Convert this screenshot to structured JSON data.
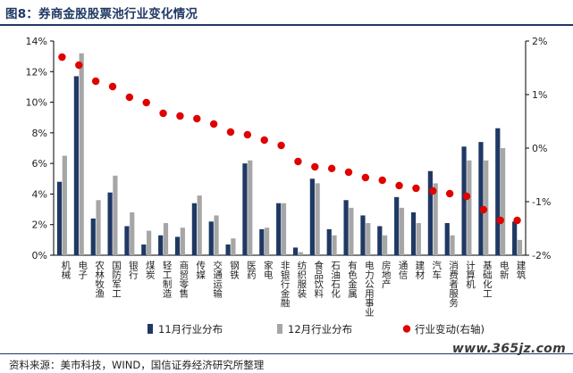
{
  "figure": {
    "title": "图8：券商金股股票池行业变化情况",
    "source": "资料来源：美市科技，WIND，国信证券经济研究所整理",
    "watermark": "www.365jz.com"
  },
  "chart_data": {
    "type": "bar",
    "title": "",
    "xlabel": "",
    "ylabel": "",
    "y2label": "",
    "categories": [
      "机械",
      "电子",
      "农林牧渔",
      "国防军工",
      "银行",
      "煤炭",
      "轻工制造",
      "商贸零售",
      "传媒",
      "交通运输",
      "钢铁",
      "医药",
      "家电",
      "非银行金融",
      "纺织服装",
      "食品饮料",
      "石油石化",
      "有色金属",
      "电力公用事业",
      "房地产",
      "通信",
      "建材",
      "汽车",
      "消费者服务",
      "计算机",
      "基础化工",
      "电新",
      "建筑"
    ],
    "ylim": [
      0,
      14
    ],
    "yticks": [
      0,
      2,
      4,
      6,
      8,
      10,
      12,
      14
    ],
    "ytick_labels": [
      "0%",
      "2%",
      "4%",
      "6%",
      "8%",
      "10%",
      "12%",
      "14%"
    ],
    "y2lim": [
      -2,
      2
    ],
    "y2ticks": [
      -2,
      -1,
      0,
      1,
      2
    ],
    "y2tick_labels": [
      "-2%",
      "-1%",
      "0%",
      "1%",
      "2%"
    ],
    "grid": false,
    "legend_position": "bottom",
    "series": [
      {
        "name": "11月行业分布",
        "type": "bar",
        "axis": "left",
        "color": "#1f3864",
        "values": [
          4.8,
          11.7,
          2.4,
          4.1,
          1.9,
          0.7,
          1.3,
          1.2,
          3.4,
          2.2,
          0.7,
          6.0,
          1.7,
          3.4,
          0.5,
          5.0,
          1.7,
          3.6,
          2.6,
          1.9,
          3.8,
          2.8,
          5.5,
          2.1,
          7.1,
          7.4,
          8.3,
          2.2
        ]
      },
      {
        "name": "12月行业分布",
        "type": "bar",
        "axis": "left",
        "color": "#a6a6a6",
        "values": [
          6.5,
          13.2,
          3.6,
          5.2,
          2.8,
          1.6,
          2.1,
          1.8,
          3.9,
          2.6,
          1.1,
          6.2,
          1.8,
          3.4,
          0.2,
          4.7,
          1.3,
          3.1,
          2.1,
          1.3,
          3.1,
          2.1,
          4.7,
          1.3,
          6.2,
          6.2,
          7.0,
          1.0
        ]
      },
      {
        "name": "行业变动(右轴)",
        "type": "scatter",
        "axis": "right",
        "color": "#e00000",
        "values": [
          1.7,
          1.55,
          1.25,
          1.15,
          0.95,
          0.85,
          0.65,
          0.6,
          0.55,
          0.45,
          0.3,
          0.25,
          0.15,
          0.05,
          -0.25,
          -0.35,
          -0.38,
          -0.45,
          -0.55,
          -0.6,
          -0.7,
          -0.75,
          -0.8,
          -0.85,
          -0.9,
          -1.15,
          -1.35,
          -1.35
        ]
      }
    ]
  }
}
